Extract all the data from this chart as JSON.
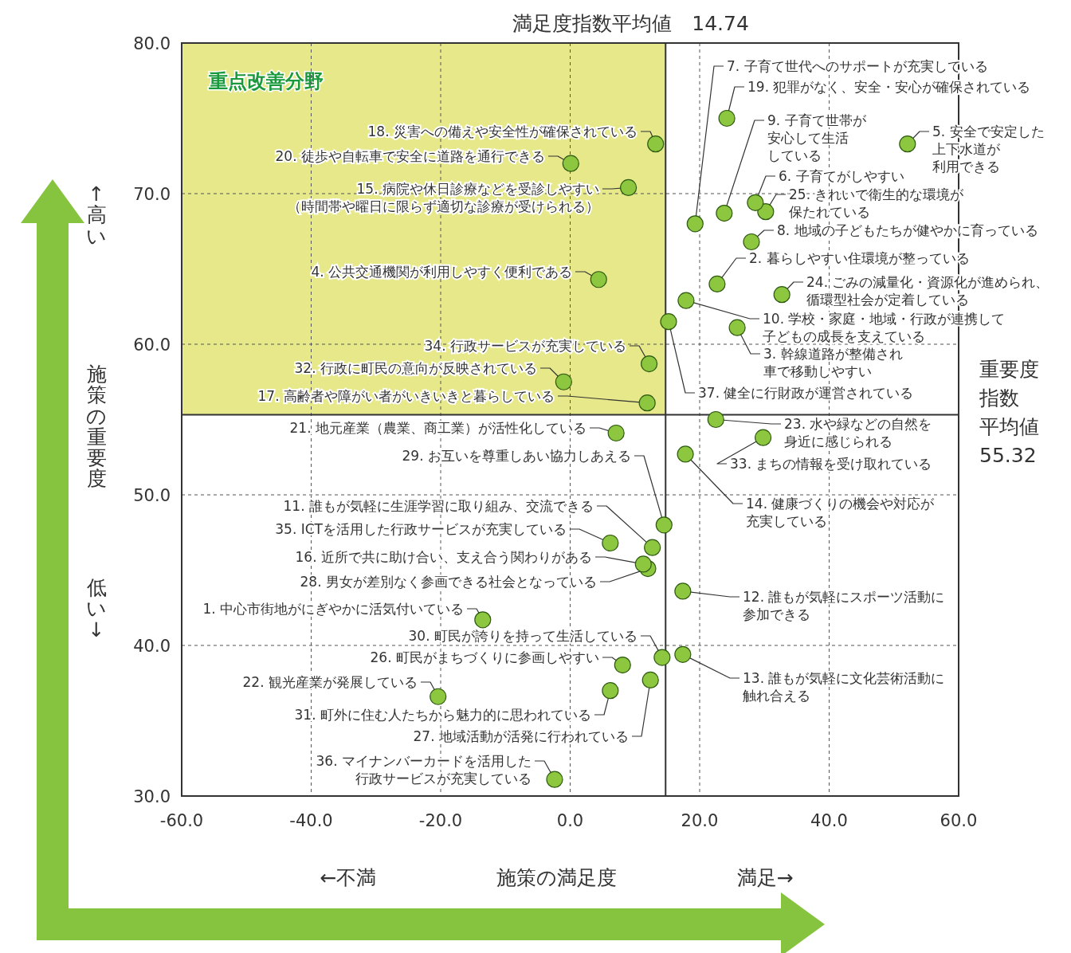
{
  "chart_data": {
    "type": "scatter",
    "xlabel": "施策の満足度",
    "ylabel": "施策の重要度",
    "x": [
      -13.5,
      22.7,
      25.8,
      4.4,
      52.1,
      28.6,
      19.3,
      28.0,
      23.8,
      17.9,
      12.7,
      17.4,
      17.4,
      17.8,
      9.0,
      11.3,
      11.9,
      13.2,
      24.2,
      0.1,
      7.1,
      -20.4,
      22.5,
      32.7,
      30.2,
      8.1,
      12.4,
      12.0,
      14.5,
      14.2,
      6.2,
      -1.0,
      29.8,
      12.2,
      6.2,
      -2.4,
      15.2
    ],
    "values": [
      41.7,
      64.0,
      61.1,
      64.3,
      73.3,
      69.4,
      68.0,
      66.8,
      68.7,
      62.9,
      46.5,
      43.6,
      39.4,
      52.7,
      70.4,
      45.4,
      56.1,
      73.3,
      75.0,
      72.0,
      54.1,
      36.6,
      55.0,
      63.3,
      68.8,
      38.7,
      37.7,
      45.1,
      48.0,
      39.2,
      37.0,
      57.5,
      53.8,
      58.7,
      46.8,
      31.1,
      61.5
    ],
    "color": "#8dc63f",
    "marker": "circle",
    "grid": true,
    "xlim": [
      -60,
      60
    ],
    "ylim": [
      30,
      80
    ],
    "xticks": [
      {
        "value": -60,
        "label": "-60.0"
      },
      {
        "value": -40,
        "label": "-40.0"
      },
      {
        "value": -20,
        "label": "-20.0"
      },
      {
        "value": 0,
        "label": "0.0"
      },
      {
        "value": 20,
        "label": "20.0"
      },
      {
        "value": 40,
        "label": "40.0"
      },
      {
        "value": 60,
        "label": "60.0"
      }
    ],
    "yticks": [
      {
        "value": 30,
        "label": "30.0"
      },
      {
        "value": 40,
        "label": "40.0"
      },
      {
        "value": 50,
        "label": "50.0"
      },
      {
        "value": 60,
        "label": "60.0"
      },
      {
        "value": 70,
        "label": "70.0"
      },
      {
        "value": 80,
        "label": "80.0"
      }
    ],
    "ref_lines": [
      {
        "axis": "x",
        "value": 14.74,
        "label": "満足度指数平均値　14.74"
      },
      {
        "axis": "y",
        "value": 55.32,
        "label": "重要度指数平均値55.32"
      }
    ],
    "bands": [
      {
        "axis": "x",
        "from": -60,
        "to": 14.74,
        "label": "重点改善分野",
        "color": "#e6e88a"
      }
    ],
    "annotations": [
      {
        "text": "1. 中心市街地がにぎやかに活気付いている",
        "x": -13.5,
        "y": 41.7
      },
      {
        "text": "2. 暮らしやすい住環境が整っている",
        "x": 22.7,
        "y": 64.0
      },
      {
        "text": "3. 幹線道路が整備され車で移動しやすい",
        "x": 25.8,
        "y": 61.1
      },
      {
        "text": "4. 公共交通機関が利用しやすく便利である",
        "x": 4.4,
        "y": 64.3
      },
      {
        "text": "5. 安全で安定した上下水道が利用できる",
        "x": 52.1,
        "y": 73.3
      },
      {
        "text": "6. 子育てがしやすい",
        "x": 28.6,
        "y": 69.4
      },
      {
        "text": "7. 子育て世代へのサポートが充実している",
        "x": 19.3,
        "y": 68.0
      },
      {
        "text": "8. 地域の子どもたちが健やかに育っている",
        "x": 28.0,
        "y": 66.8
      },
      {
        "text": "9. 子育て世帯が安心して生活している",
        "x": 23.8,
        "y": 68.7
      },
      {
        "text": "10. 学校・家庭・地域・行政が連携して子どもの成長を支えている",
        "x": 17.9,
        "y": 62.9
      },
      {
        "text": "11. 誰もが気軽に生涯学習に取り組み、交流できる",
        "x": 12.7,
        "y": 46.5
      },
      {
        "text": "12. 誰もが気軽にスポーツ活動に参加できる",
        "x": 17.4,
        "y": 43.6
      },
      {
        "text": "13. 誰もが気軽に文化芸術活動に触れ合える",
        "x": 17.4,
        "y": 39.4
      },
      {
        "text": "14. 健康づくりの機会や対応が充実している",
        "x": 17.8,
        "y": 52.7
      },
      {
        "text": "15. 病院や休日診療などを受診しやすい（時間帯や曜日に限らず適切な診療が受けられる）",
        "x": 9.0,
        "y": 70.4
      },
      {
        "text": "16. 近所で共に助け合い、支え合う関わりがある",
        "x": 11.3,
        "y": 45.4
      },
      {
        "text": "17. 高齢者や障がい者がいきいきと暮らしている",
        "x": 11.9,
        "y": 56.1
      },
      {
        "text": "18. 災害への備えや安全性が確保されている",
        "x": 13.2,
        "y": 73.3
      },
      {
        "text": "19. 犯罪がなく、安全・安心が確保されている",
        "x": 24.2,
        "y": 75.0
      },
      {
        "text": "20. 徒歩や自転車で安全に道路を通行できる",
        "x": 0.1,
        "y": 72.0
      },
      {
        "text": "21. 地元産業（農業、商工業）が活性化している",
        "x": 7.1,
        "y": 54.1
      },
      {
        "text": "22. 観光産業が発展している",
        "x": -20.4,
        "y": 36.6
      },
      {
        "text": "23. 水や緑などの自然を身近に感じられる",
        "x": 22.5,
        "y": 55.0
      },
      {
        "text": "24. ごみの減量化・資源化が進められ、循環型社会が定着している",
        "x": 32.7,
        "y": 63.3
      },
      {
        "text": "25. きれいで衛生的な環境が保たれている",
        "x": 30.2,
        "y": 68.8
      },
      {
        "text": "26. 町民がまちづくりに参画しやすい",
        "x": 8.1,
        "y": 38.7
      },
      {
        "text": "27. 地域活動が活発に行われている",
        "x": 12.4,
        "y": 37.7
      },
      {
        "text": "28. 男女が差別なく参画できる社会となっている",
        "x": 12.0,
        "y": 45.1
      },
      {
        "text": "29. お互いを尊重しあい協力しあえる",
        "x": 14.5,
        "y": 48.0
      },
      {
        "text": "30. 町民が誇りを持って生活している",
        "x": 14.2,
        "y": 39.2
      },
      {
        "text": "31. 町外に住む人たちから魅力的に思われている",
        "x": 6.2,
        "y": 37.0
      },
      {
        "text": "32. 行政に町民の意向が反映されている",
        "x": -1.0,
        "y": 57.5
      },
      {
        "text": "33. まちの情報を受け取れている",
        "x": 29.8,
        "y": 53.8
      },
      {
        "text": "34. 行政サービスが充実している",
        "x": 12.2,
        "y": 58.7
      },
      {
        "text": "35. ICTを活用した行政サービスが充実している",
        "x": 6.2,
        "y": 46.8
      },
      {
        "text": "36. マイナンバーカードを活用した行政サービスが充実している",
        "x": -2.4,
        "y": 31.1
      },
      {
        "text": "37. 健全に行財政が運営されている",
        "x": 15.2,
        "y": 61.5
      },
      "←不満",
      "満足→",
      "↑高い",
      "低い↓"
    ]
  }
}
